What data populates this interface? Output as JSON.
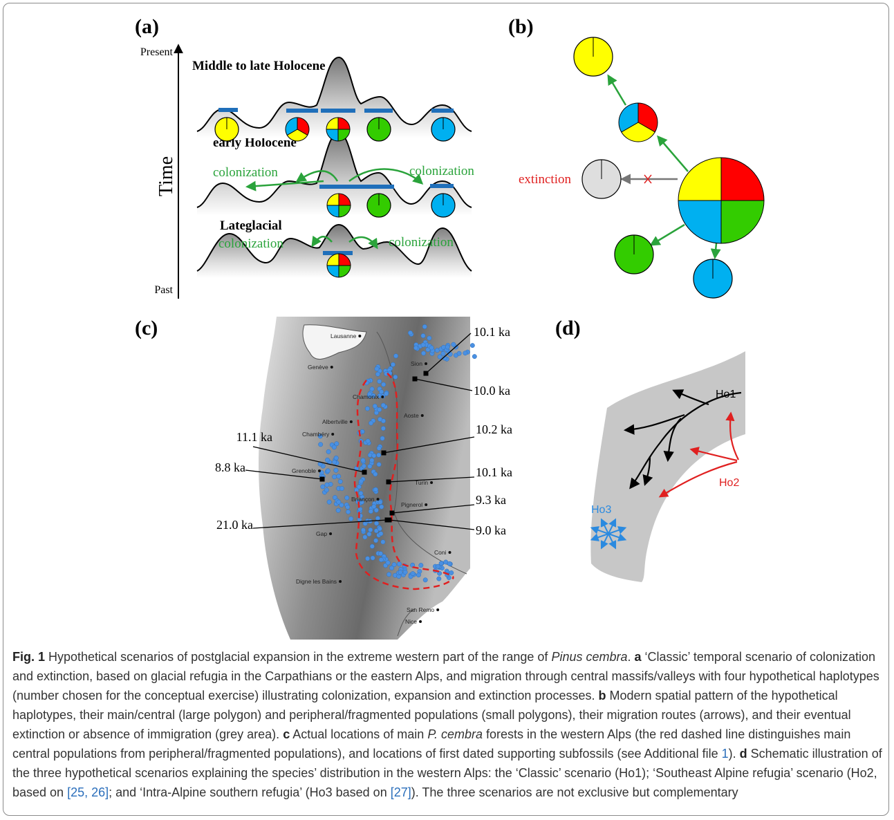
{
  "figure": {
    "panel_a": {
      "label": "(a)",
      "time_top": "Present",
      "time_bottom": "Past",
      "time_axis": "Time",
      "stages": [
        "Middle to late Holocene",
        "early Holocene",
        "Lateglacial"
      ],
      "annotations": [
        "colonization",
        "colonization",
        "colonization",
        "colonization"
      ]
    },
    "panel_b": {
      "label": "(b)",
      "annotation": "extinction"
    },
    "panel_c": {
      "label": "(c)",
      "cities": [
        "Lausanne",
        "Genève",
        "Sion",
        "Chamonix",
        "Albertville",
        "Aoste",
        "Chambéry",
        "Grenoble",
        "Turin",
        "Briançon",
        "Pignerol",
        "Gap",
        "Coni",
        "Digne les Bains",
        "San Remo",
        "Nice"
      ],
      "dates": [
        "10.1 ka",
        "10.0 ka",
        "10.2 ka",
        "10.1 ka",
        "9.3 ka",
        "9.0 ka",
        "11.1 ka",
        "8.8 ka",
        "21.0 ka"
      ]
    },
    "panel_d": {
      "label": "(d)",
      "scenarios": [
        "Ho1",
        "Ho2",
        "Ho3"
      ]
    }
  },
  "caption": {
    "parts": [
      "Fig. 1",
      " Hypothetical scenarios of postglacial expansion in the extreme western part of the range of ",
      "Pinus cembra",
      ". ",
      "a",
      " ‘Classic’ temporal scenario of colonization and extinction, based on glacial refugia in the Carpathians or the eastern Alps, and migration through central massifs/valleys with four hypothetical haplotypes (number chosen for the conceptual exercise) illustrating colonization, expansion and extinction processes. ",
      "b",
      " Modern spatial pattern of the hypothetical haplotypes, their main/central (large polygon) and peripheral/fragmented populations (small polygons), their migration routes (arrows), and their eventual extinction or absence of immigration (grey area). ",
      "c",
      " Actual locations of main ",
      "P. cembra",
      " forests in the western Alps (the red dashed line distinguishes main central populations from peripheral/fragmented populations), and locations of first dated supporting subfossils (see Additional file ",
      "1",
      "). ",
      "d",
      " Schematic illustration of the three hypothetical scenarios explaining the species’ distribution in the western Alps: the ‘Classic’ scenario (Ho1); ‘Southeast Alpine refugia’ scenario (Ho2, based on ",
      "[25, 26]",
      "; and ‘Intra-Alpine southern refugia’ (Ho3 based on ",
      "[27]",
      "). The three scenarios are not exclusive but complementary"
    ]
  }
}
